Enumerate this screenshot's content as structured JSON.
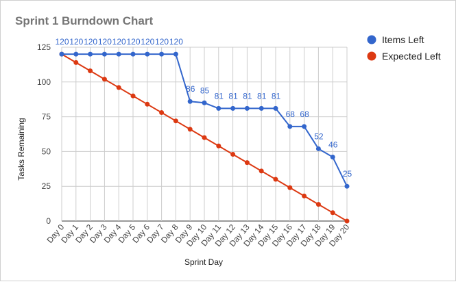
{
  "chart_data": {
    "type": "line",
    "title": "Sprint 1 Burndown Chart",
    "xlabel": "Sprint Day",
    "ylabel": "Tasks Remaining",
    "ylim": [
      0,
      125
    ],
    "yticks": [
      0,
      25,
      50,
      75,
      100,
      125
    ],
    "grid": true,
    "legend_position": "right",
    "categories": [
      "Day 0",
      "Day 1",
      "Day 2",
      "Day 3",
      "Day 4",
      "Day 5",
      "Day 6",
      "Day 7",
      "Day 8",
      "Day 9",
      "Day 10",
      "Day 11",
      "Day 12",
      "Day 13",
      "Day 14",
      "Day 15",
      "Day 16",
      "Day 17",
      "Day 18",
      "Day 19",
      "Day 20"
    ],
    "series": [
      {
        "name": "Items Left",
        "color": "#3366cc",
        "show_labels": true,
        "values": [
          120,
          120,
          120,
          120,
          120,
          120,
          120,
          120,
          120,
          86,
          85,
          81,
          81,
          81,
          81,
          81,
          68,
          68,
          52,
          46,
          25
        ]
      },
      {
        "name": "Expected Left",
        "color": "#dc3912",
        "show_labels": false,
        "values": [
          120,
          114,
          108,
          102,
          96,
          90,
          84,
          78,
          72,
          66,
          60,
          54,
          48,
          42,
          36,
          30,
          24,
          18,
          12,
          6,
          0
        ]
      }
    ]
  }
}
